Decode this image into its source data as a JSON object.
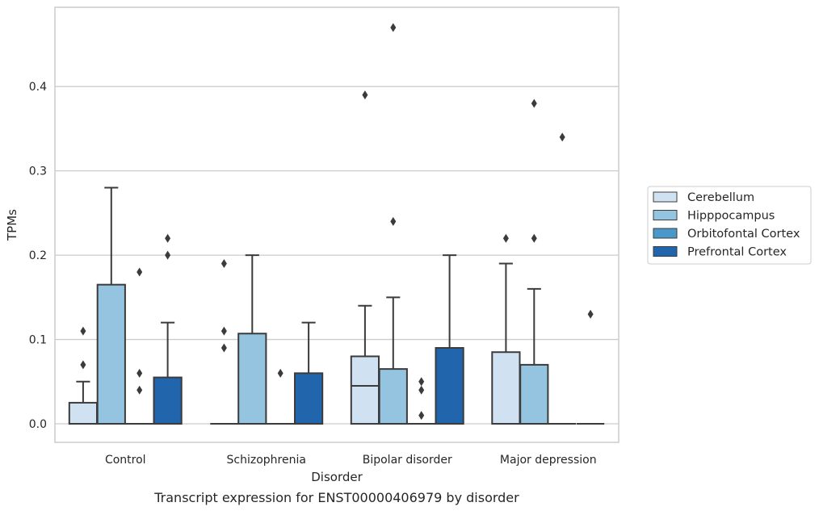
{
  "chart_data": {
    "type": "boxplot",
    "caption": "Transcript expression for ENST00000406979 by disorder",
    "xlabel": "Disorder",
    "ylabel": "TPMs",
    "ylim": [
      -0.022,
      0.494
    ],
    "yticks": [
      "0.0",
      "0.1",
      "0.2",
      "0.3",
      "0.4"
    ],
    "grid": "horizontal",
    "legend_placement": "outside-right",
    "categories": [
      "Control",
      "Schizophrenia",
      "Bipolar disorder",
      "Major depression"
    ],
    "series": [
      {
        "name": "Cerebellum",
        "color": "#d0e1f2",
        "boxes": [
          {
            "q1": 0.0,
            "median": 0.0,
            "q3": 0.025,
            "whisker_low": 0.0,
            "whisker_high": 0.05,
            "outliers": [
              0.07,
              0.11
            ]
          },
          {
            "q1": 0.0,
            "median": 0.0,
            "q3": 0.0,
            "whisker_low": 0.0,
            "whisker_high": 0.0,
            "outliers": [
              0.09,
              0.11,
              0.19
            ]
          },
          {
            "q1": 0.0,
            "median": 0.045,
            "q3": 0.08,
            "whisker_low": 0.0,
            "whisker_high": 0.14,
            "outliers": [
              0.39
            ]
          },
          {
            "q1": 0.0,
            "median": 0.0,
            "q3": 0.085,
            "whisker_low": 0.0,
            "whisker_high": 0.19,
            "outliers": [
              0.22
            ]
          }
        ]
      },
      {
        "name": "Hipppocampus",
        "color": "#94c4df",
        "boxes": [
          {
            "q1": 0.0,
            "median": 0.0,
            "q3": 0.165,
            "whisker_low": 0.0,
            "whisker_high": 0.28,
            "outliers": []
          },
          {
            "q1": 0.0,
            "median": 0.0,
            "q3": 0.107,
            "whisker_low": 0.0,
            "whisker_high": 0.2,
            "outliers": []
          },
          {
            "q1": 0.0,
            "median": 0.0,
            "q3": 0.065,
            "whisker_low": 0.0,
            "whisker_high": 0.15,
            "outliers": [
              0.24,
              0.47
            ]
          },
          {
            "q1": 0.0,
            "median": 0.0,
            "q3": 0.07,
            "whisker_low": 0.0,
            "whisker_high": 0.16,
            "outliers": [
              0.22,
              0.38
            ]
          }
        ]
      },
      {
        "name": "Orbitofontal Cortex",
        "color": "#4a98c9",
        "boxes": [
          {
            "q1": 0.0,
            "median": 0.0,
            "q3": 0.0,
            "whisker_low": 0.0,
            "whisker_high": 0.0,
            "outliers": [
              0.04,
              0.06,
              0.18
            ]
          },
          {
            "q1": 0.0,
            "median": 0.0,
            "q3": 0.0,
            "whisker_low": 0.0,
            "whisker_high": 0.0,
            "outliers": [
              0.06
            ]
          },
          {
            "q1": 0.0,
            "median": 0.0,
            "q3": 0.0,
            "whisker_low": 0.0,
            "whisker_high": 0.0,
            "outliers": [
              0.01,
              0.04,
              0.05
            ]
          },
          {
            "q1": 0.0,
            "median": 0.0,
            "q3": 0.0,
            "whisker_low": 0.0,
            "whisker_high": 0.0,
            "outliers": [
              0.34
            ]
          }
        ]
      },
      {
        "name": "Prefrontal Cortex",
        "color": "#2166ac",
        "boxes": [
          {
            "q1": 0.0,
            "median": 0.0,
            "q3": 0.055,
            "whisker_low": 0.0,
            "whisker_high": 0.12,
            "outliers": [
              0.2,
              0.22
            ]
          },
          {
            "q1": 0.0,
            "median": 0.0,
            "q3": 0.06,
            "whisker_low": 0.0,
            "whisker_high": 0.12,
            "outliers": []
          },
          {
            "q1": 0.0,
            "median": 0.0,
            "q3": 0.09,
            "whisker_low": 0.0,
            "whisker_high": 0.2,
            "outliers": []
          },
          {
            "q1": 0.0,
            "median": 0.0,
            "q3": 0.0,
            "whisker_low": 0.0,
            "whisker_high": 0.0,
            "outliers": [
              0.13
            ]
          }
        ]
      }
    ]
  }
}
